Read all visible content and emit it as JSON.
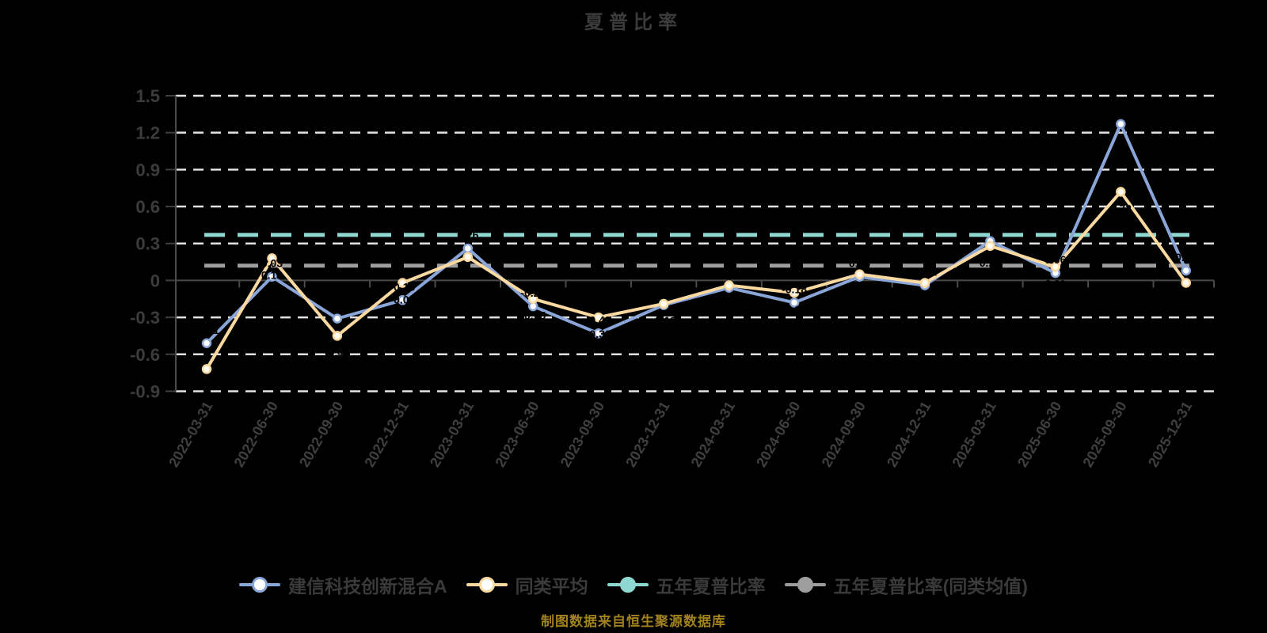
{
  "title": "夏普比率",
  "footer_note": "制图数据来自恒生聚源数据库",
  "y_axis": {
    "tick_labels": [
      "1.5",
      "1.2",
      "0.9",
      "0.6",
      "0.3",
      "0",
      "-0.3",
      "-0.6",
      "-0.9"
    ]
  },
  "legend": {
    "items": [
      {
        "label": "建信科技创新混合A",
        "color": "#8aa5d8",
        "marker": "hollow"
      },
      {
        "label": "同类平均",
        "color": "#fbd9a0",
        "marker": "hollow"
      },
      {
        "label": "五年夏普比率",
        "color": "#8fd8d2",
        "marker": "solid"
      },
      {
        "label": "五年夏普比率(同类均值)",
        "color": "#9e9e9e",
        "marker": "solid"
      }
    ]
  },
  "chart_data": {
    "type": "line",
    "title": "夏普比率",
    "categories": [
      "2022-03-31",
      "2022-06-30",
      "2022-09-30",
      "2022-12-31",
      "2023-03-31",
      "2023-06-30",
      "2023-09-30",
      "2023-12-31",
      "2024-03-31",
      "2024-06-30",
      "2024-09-30",
      "2024-12-31",
      "2025-03-31",
      "2025-06-30",
      "2025-09-30",
      "2025-12-31"
    ],
    "series": [
      {
        "name": "建信科技创新混合A",
        "color": "#8aa5d8",
        "values": [
          -0.51,
          0.03,
          -0.31,
          -0.16,
          0.26,
          -0.21,
          -0.43,
          -0.2,
          -0.06,
          -0.18,
          0.03,
          -0.04,
          0.32,
          0.06,
          1.27,
          0.08
        ]
      },
      {
        "name": "同类平均",
        "color": "#fbd9a0",
        "values": [
          -0.72,
          0.18,
          -0.45,
          -0.02,
          0.19,
          -0.15,
          -0.3,
          -0.19,
          -0.04,
          -0.1,
          0.05,
          -0.02,
          0.28,
          0.11,
          0.72,
          -0.02
        ]
      }
    ],
    "reference_lines": [
      {
        "name": "五年夏普比率",
        "value": 0.37,
        "color": "#8fd8d2"
      },
      {
        "name": "五年夏普比率(同类均值)",
        "value": 0.12,
        "color": "#9e9e9e"
      }
    ],
    "ylim": [
      -0.9,
      1.5
    ],
    "ytick_step": 0.3,
    "grid": true,
    "gridline_color": "#e3e3e3",
    "axis_color": "#4a4a4a",
    "tick_label_color": "#3c3c3c",
    "point_label_color": "#000000",
    "legend_position": "bottom",
    "background": "#000000"
  }
}
